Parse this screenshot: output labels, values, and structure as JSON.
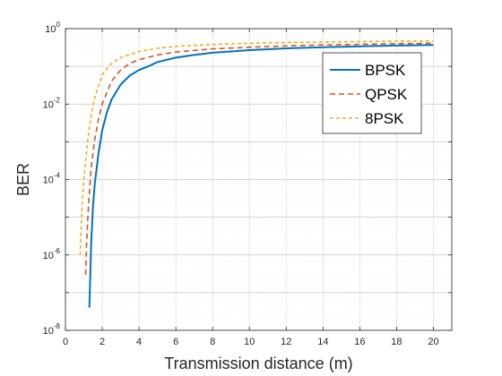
{
  "chart_data": {
    "type": "line",
    "title": "",
    "xlabel": "Transmission distance (m)",
    "ylabel": "BER",
    "xlim": [
      0,
      21
    ],
    "ylim_exponent": [
      -8,
      0
    ],
    "y_scale": "log",
    "x_ticks": [
      0,
      2,
      4,
      6,
      8,
      10,
      12,
      14,
      16,
      18,
      20
    ],
    "y_tick_exponents": [
      -8,
      -6,
      -4,
      -2,
      0
    ],
    "grid": true,
    "legend_position": "top-right",
    "series": [
      {
        "name": "BPSK",
        "color": "#0072BD",
        "dash": "solid",
        "x": [
          1.3,
          1.4,
          1.5,
          1.6,
          1.8,
          2.0,
          2.25,
          2.5,
          3.0,
          3.5,
          4.0,
          4.5,
          5.0,
          6.0,
          7.0,
          8.0,
          10.0,
          12.0,
          14.0,
          16.0,
          18.0,
          20.0
        ],
        "y": [
          4e-08,
          2e-06,
          2e-05,
          8e-05,
          0.0005,
          0.002,
          0.006,
          0.013,
          0.033,
          0.057,
          0.08,
          0.1,
          0.13,
          0.17,
          0.2,
          0.23,
          0.27,
          0.3,
          0.32,
          0.34,
          0.355,
          0.37
        ]
      },
      {
        "name": "QPSK",
        "color": "#D95319",
        "dash": "dashed",
        "x": [
          1.1,
          1.15,
          1.25,
          1.4,
          1.6,
          1.8,
          2.0,
          2.5,
          3.0,
          3.5,
          4.0,
          5.0,
          6.0,
          8.0,
          10.0,
          12.0,
          14.0,
          16.0,
          18.0,
          20.0
        ],
        "y": [
          3e-07,
          2e-06,
          2e-05,
          0.0002,
          0.0012,
          0.004,
          0.01,
          0.04,
          0.08,
          0.12,
          0.15,
          0.2,
          0.24,
          0.29,
          0.32,
          0.35,
          0.37,
          0.385,
          0.4,
          0.41
        ]
      },
      {
        "name": "8PSK",
        "color": "#EDB120",
        "dash": "dashed",
        "x": [
          0.8,
          0.9,
          1.0,
          1.2,
          1.4,
          1.6,
          2.0,
          2.5,
          3.0,
          4.0,
          5.0,
          6.0,
          8.0,
          10.0,
          12.0,
          14.0,
          16.0,
          18.0,
          20.0
        ],
        "y": [
          1e-06,
          2e-05,
          0.0001,
          0.001,
          0.005,
          0.015,
          0.06,
          0.12,
          0.17,
          0.25,
          0.3,
          0.34,
          0.38,
          0.41,
          0.43,
          0.44,
          0.455,
          0.465,
          0.47
        ]
      }
    ]
  }
}
